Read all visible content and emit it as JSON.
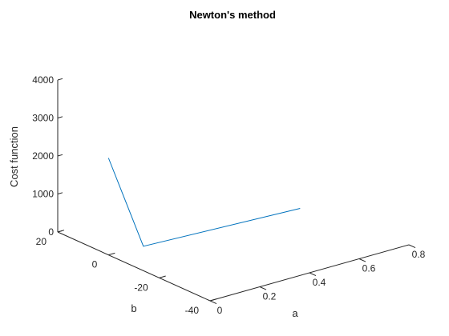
{
  "chart_data": {
    "type": "line",
    "title": "Newton's method",
    "xlabel": "a",
    "ylabel": "b",
    "zlabel": "Cost function",
    "xlim": [
      0,
      0.8
    ],
    "ylim": [
      -40,
      20
    ],
    "zlim": [
      0,
      4000
    ],
    "x_ticks": [
      0,
      0.2,
      0.4,
      0.6,
      0.8
    ],
    "x_tick_labels": [
      "0",
      "0.2",
      "0.4",
      "0.6",
      "0.8"
    ],
    "y_ticks": [
      20,
      0,
      -20,
      -40
    ],
    "y_tick_labels": [
      "20",
      "0",
      "-20",
      "-40"
    ],
    "z_ticks": [
      0,
      1000,
      2000,
      3000,
      4000
    ],
    "z_tick_labels": [
      "0",
      "1000",
      "2000",
      "3000",
      "4000"
    ],
    "grid": false,
    "series": [
      {
        "color": "#0072BD",
        "points": [
          {
            "a": 0.0,
            "b": 0.0,
            "cost": 2550
          },
          {
            "a": 0.13,
            "b": -1.0,
            "cost": 20
          },
          {
            "a": 0.73,
            "b": -4.0,
            "cost": 0
          }
        ]
      }
    ]
  }
}
